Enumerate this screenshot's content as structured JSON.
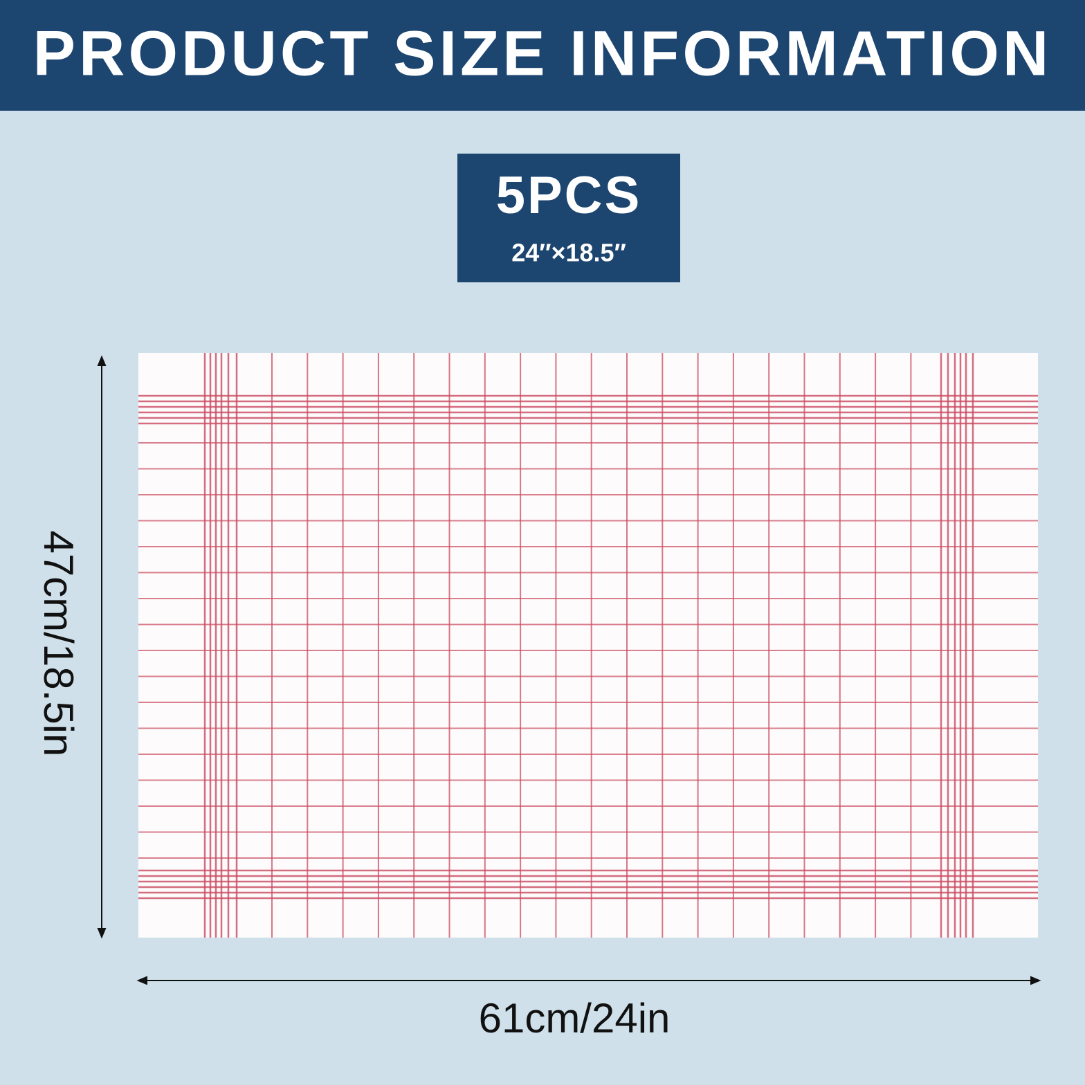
{
  "header": {
    "title": "PRODUCT SIZE INFORMATION"
  },
  "badge": {
    "count": "5PCS",
    "size": "24″×18.5″"
  },
  "dimensions": {
    "height": "47cm/18.5in",
    "width": "61cm/24in"
  }
}
